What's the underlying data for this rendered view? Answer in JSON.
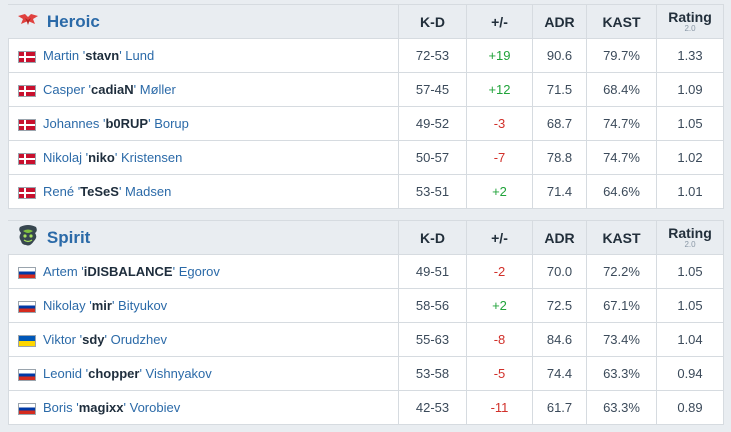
{
  "colors": {
    "positive": "#20a33a",
    "negative": "#d1302a",
    "link": "#2b6aa8"
  },
  "headers": {
    "kd": "K-D",
    "pm": "+/-",
    "adr": "ADR",
    "kast": "KAST",
    "rating": "Rating",
    "rating_ver": "2.0"
  },
  "team_a": {
    "name": "Heroic",
    "logo": "heroic-logo-icon",
    "players": [
      {
        "flag": "dk",
        "first": "Martin",
        "nick": "stavn",
        "last": "Lund",
        "kd": "72-53",
        "pm": "+19",
        "adr": "90.6",
        "kast": "79.7%",
        "rating": "1.33"
      },
      {
        "flag": "dk",
        "first": "Casper",
        "nick": "cadiaN",
        "last": "Møller",
        "kd": "57-45",
        "pm": "+12",
        "adr": "71.5",
        "kast": "68.4%",
        "rating": "1.09"
      },
      {
        "flag": "dk",
        "first": "Johannes",
        "nick": "b0RUP",
        "last": "Borup",
        "kd": "49-52",
        "pm": "-3",
        "adr": "68.7",
        "kast": "74.7%",
        "rating": "1.05"
      },
      {
        "flag": "dk",
        "first": "Nikolaj",
        "nick": "niko",
        "last": "Kristensen",
        "kd": "50-57",
        "pm": "-7",
        "adr": "78.8",
        "kast": "74.7%",
        "rating": "1.02"
      },
      {
        "flag": "dk",
        "first": "René",
        "nick": "TeSeS",
        "last": "Madsen",
        "kd": "53-51",
        "pm": "+2",
        "adr": "71.4",
        "kast": "64.6%",
        "rating": "1.01"
      }
    ]
  },
  "team_b": {
    "name": "Spirit",
    "logo": "spirit-logo-icon",
    "players": [
      {
        "flag": "ru",
        "first": "Artem",
        "nick": "iDISBALANCE",
        "last": "Egorov",
        "kd": "49-51",
        "pm": "-2",
        "adr": "70.0",
        "kast": "72.2%",
        "rating": "1.05"
      },
      {
        "flag": "ru",
        "first": "Nikolay",
        "nick": "mir",
        "last": "Bityukov",
        "kd": "58-56",
        "pm": "+2",
        "adr": "72.5",
        "kast": "67.1%",
        "rating": "1.05"
      },
      {
        "flag": "ua",
        "first": "Viktor",
        "nick": "sdy",
        "last": "Orudzhev",
        "kd": "55-63",
        "pm": "-8",
        "adr": "84.6",
        "kast": "73.4%",
        "rating": "1.04"
      },
      {
        "flag": "ru",
        "first": "Leonid",
        "nick": "chopper",
        "last": "Vishnyakov",
        "kd": "53-58",
        "pm": "-5",
        "adr": "74.4",
        "kast": "63.3%",
        "rating": "0.94"
      },
      {
        "flag": "ru",
        "first": "Boris",
        "nick": "magixx",
        "last": "Vorobiev",
        "kd": "42-53",
        "pm": "-11",
        "adr": "61.7",
        "kast": "63.3%",
        "rating": "0.89"
      }
    ]
  }
}
